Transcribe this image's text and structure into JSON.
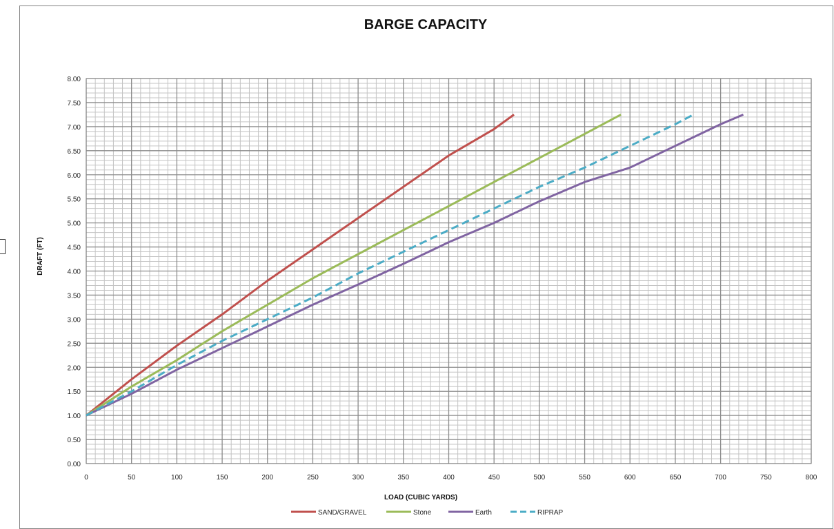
{
  "chart_data": {
    "type": "line",
    "title": "BARGE CAPACITY",
    "xlabel": "LOAD (CUBIC  YARDS)",
    "ylabel": "DRAFT (FT)",
    "xlim": [
      0,
      800
    ],
    "ylim": [
      0,
      8
    ],
    "x_ticks": [
      "0",
      "50",
      "100",
      "150",
      "200",
      "250",
      "300",
      "350",
      "400",
      "450",
      "500",
      "550",
      "600",
      "650",
      "700",
      "750",
      "800"
    ],
    "y_ticks": [
      "0.00",
      "0.50",
      "1.00",
      "1.50",
      "2.00",
      "2.50",
      "3.00",
      "3.50",
      "4.00",
      "4.50",
      "5.00",
      "5.50",
      "6.00",
      "6.50",
      "7.00",
      "7.50",
      "8.00"
    ],
    "grid": true,
    "legend_position": "bottom",
    "series": [
      {
        "name": "SAND/GRAVEL",
        "color": "#c0504d",
        "dash": "solid",
        "points": [
          [
            0,
            1.0
          ],
          [
            50,
            1.75
          ],
          [
            100,
            2.45
          ],
          [
            150,
            3.1
          ],
          [
            200,
            3.8
          ],
          [
            250,
            4.45
          ],
          [
            300,
            5.1
          ],
          [
            350,
            5.75
          ],
          [
            400,
            6.4
          ],
          [
            450,
            6.95
          ],
          [
            472,
            7.25
          ]
        ]
      },
      {
        "name": "Stone",
        "color": "#9bbb59",
        "dash": "solid",
        "points": [
          [
            0,
            1.0
          ],
          [
            50,
            1.6
          ],
          [
            100,
            2.15
          ],
          [
            150,
            2.75
          ],
          [
            200,
            3.3
          ],
          [
            250,
            3.85
          ],
          [
            300,
            4.35
          ],
          [
            350,
            4.85
          ],
          [
            400,
            5.35
          ],
          [
            450,
            5.85
          ],
          [
            500,
            6.35
          ],
          [
            550,
            6.85
          ],
          [
            590,
            7.25
          ]
        ]
      },
      {
        "name": "Earth",
        "color": "#8064a2",
        "dash": "solid",
        "points": [
          [
            0,
            1.0
          ],
          [
            50,
            1.45
          ],
          [
            100,
            1.95
          ],
          [
            150,
            2.4
          ],
          [
            200,
            2.85
          ],
          [
            250,
            3.3
          ],
          [
            300,
            3.72
          ],
          [
            350,
            4.15
          ],
          [
            400,
            4.6
          ],
          [
            450,
            5.0
          ],
          [
            500,
            5.45
          ],
          [
            550,
            5.85
          ],
          [
            600,
            6.15
          ],
          [
            650,
            6.6
          ],
          [
            700,
            7.05
          ],
          [
            725,
            7.25
          ]
        ]
      },
      {
        "name": "RIPRAP",
        "color": "#4bacc6",
        "dash": "dashed",
        "points": [
          [
            0,
            1.0
          ],
          [
            50,
            1.5
          ],
          [
            100,
            2.05
          ],
          [
            150,
            2.55
          ],
          [
            200,
            3.0
          ],
          [
            250,
            3.45
          ],
          [
            300,
            3.95
          ],
          [
            350,
            4.4
          ],
          [
            400,
            4.85
          ],
          [
            450,
            5.3
          ],
          [
            500,
            5.75
          ],
          [
            550,
            6.15
          ],
          [
            600,
            6.6
          ],
          [
            650,
            7.05
          ],
          [
            670,
            7.25
          ]
        ]
      }
    ]
  }
}
